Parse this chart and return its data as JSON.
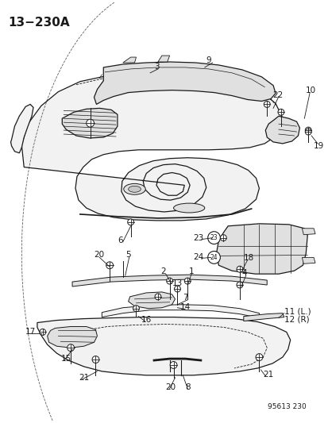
{
  "title": "13−230A",
  "footer": "95613 230",
  "bg_color": "#ffffff",
  "title_fontsize": 11,
  "footer_fontsize": 6.5,
  "label_fontsize": 7.5,
  "line_color": "#1a1a1a",
  "fill_light": "#f2f2f2",
  "fill_mid": "#e0e0e0",
  "fill_dark": "#c8c8c8"
}
